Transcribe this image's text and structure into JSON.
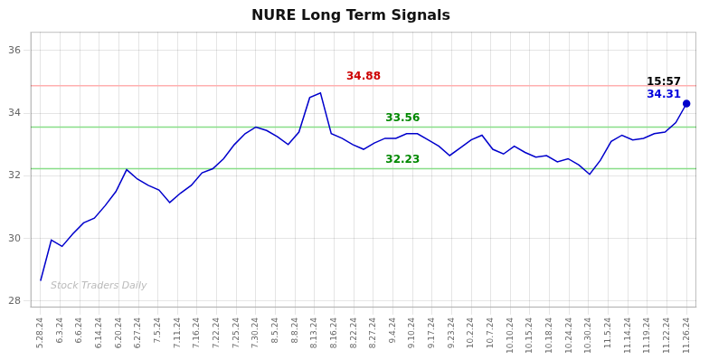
{
  "chart_data": {
    "type": "line",
    "title": "NURE Long Term Signals",
    "watermark": "Stock Traders Daily",
    "x": [
      0,
      0.55,
      1.1,
      1.65,
      2.2,
      2.75,
      3.3,
      3.85,
      4.4,
      4.95,
      5.5,
      6.05,
      6.6,
      7.15,
      7.7,
      8.25,
      8.8,
      9.35,
      9.9,
      10.45,
      11,
      11.55,
      12.1,
      12.65,
      13.2,
      13.75,
      14.3,
      14.85,
      15.4,
      15.95,
      16.5,
      17.05,
      17.6,
      18.15,
      18.7,
      19.25,
      19.8,
      20.35,
      20.9,
      21.45,
      22,
      22.55,
      23.1,
      23.65,
      24.2,
      24.75,
      25.3,
      25.85,
      26.4,
      26.95,
      27.5,
      28.05,
      28.6,
      29.15,
      29.7,
      30.25,
      30.8,
      31.35,
      31.9,
      32.45,
      33
    ],
    "series": [
      {
        "color": "#0000cc",
        "values": [
          28.65,
          29.95,
          29.75,
          30.15,
          30.5,
          30.65,
          31.05,
          31.5,
          32.2,
          31.9,
          31.7,
          31.55,
          31.15,
          31.45,
          31.7,
          32.1,
          32.23,
          32.55,
          33.0,
          33.35,
          33.56,
          33.45,
          33.25,
          33.0,
          33.4,
          34.5,
          34.65,
          33.35,
          33.2,
          33.0,
          32.85,
          33.05,
          33.2,
          33.2,
          33.35,
          33.35,
          33.15,
          32.95,
          32.65,
          32.9,
          33.15,
          33.3,
          32.85,
          32.7,
          32.95,
          32.75,
          32.6,
          32.65,
          32.45,
          32.55,
          32.35,
          32.05,
          32.5,
          33.1,
          33.3,
          33.15,
          33.2,
          33.35,
          33.4,
          33.7,
          34.31
        ]
      }
    ],
    "hlines": [
      {
        "y": 34.88,
        "color": "#ffb0b0"
      },
      {
        "y": 33.56,
        "color": "#88dd88"
      },
      {
        "y": 32.23,
        "color": "#88dd88"
      }
    ],
    "annotations": [
      {
        "text": "34.88",
        "x": 16.5,
        "y": 34.88,
        "color": "#cc0000"
      },
      {
        "text": "33.56",
        "x": 18.5,
        "y": 33.56,
        "color": "#008800"
      },
      {
        "text": "32.23",
        "x": 18.5,
        "y": 32.23,
        "color": "#008800"
      },
      {
        "text": "34.31",
        "x": 33,
        "y": 34.31,
        "color": "#0000dd"
      },
      {
        "text": "15:57",
        "x": 33,
        "y": 34.31,
        "color": "#000000"
      }
    ],
    "xlim": [
      -0.5,
      33.5
    ],
    "xticks": [
      {
        "value": 0,
        "label": "5.28.24"
      },
      {
        "value": 1,
        "label": "6.3.24"
      },
      {
        "value": 2,
        "label": "6.6.24"
      },
      {
        "value": 3,
        "label": "6.14.24"
      },
      {
        "value": 4,
        "label": "6.20.24"
      },
      {
        "value": 5,
        "label": "6.27.24"
      },
      {
        "value": 6,
        "label": "7.5.24"
      },
      {
        "value": 7,
        "label": "7.11.24"
      },
      {
        "value": 8,
        "label": "7.16.24"
      },
      {
        "value": 9,
        "label": "7.22.24"
      },
      {
        "value": 10,
        "label": "7.25.24"
      },
      {
        "value": 11,
        "label": "7.30.24"
      },
      {
        "value": 12,
        "label": "8.5.24"
      },
      {
        "value": 13,
        "label": "8.8.24"
      },
      {
        "value": 14,
        "label": "8.13.24"
      },
      {
        "value": 15,
        "label": "8.16.24"
      },
      {
        "value": 16,
        "label": "8.22.24"
      },
      {
        "value": 17,
        "label": "8.27.24"
      },
      {
        "value": 18,
        "label": "9.4.24"
      },
      {
        "value": 19,
        "label": "9.10.24"
      },
      {
        "value": 20,
        "label": "9.17.24"
      },
      {
        "value": 21,
        "label": "9.23.24"
      },
      {
        "value": 22,
        "label": "10.2.24"
      },
      {
        "value": 23,
        "label": "10.7.24"
      },
      {
        "value": 24,
        "label": "10.10.24"
      },
      {
        "value": 25,
        "label": "10.15.24"
      },
      {
        "value": 26,
        "label": "10.18.24"
      },
      {
        "value": 27,
        "label": "10.24.24"
      },
      {
        "value": 28,
        "label": "10.30.24"
      },
      {
        "value": 29,
        "label": "11.5.24"
      },
      {
        "value": 30,
        "label": "11.14.24"
      },
      {
        "value": 31,
        "label": "11.19.24"
      },
      {
        "value": 32,
        "label": "11.22.24"
      },
      {
        "value": 33,
        "label": "11.26.24"
      }
    ],
    "ylim": [
      27.8,
      36.6
    ],
    "yticks": [
      28,
      30,
      32,
      34,
      36
    ],
    "grid": true
  }
}
